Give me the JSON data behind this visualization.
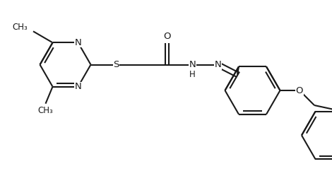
{
  "bg_color": "#ffffff",
  "line_color": "#1a1a1a",
  "line_width": 1.5,
  "figsize": [
    4.7,
    2.59
  ],
  "dpi": 100,
  "xlim": [
    0,
    9.4
  ],
  "ylim": [
    0,
    5.18
  ]
}
